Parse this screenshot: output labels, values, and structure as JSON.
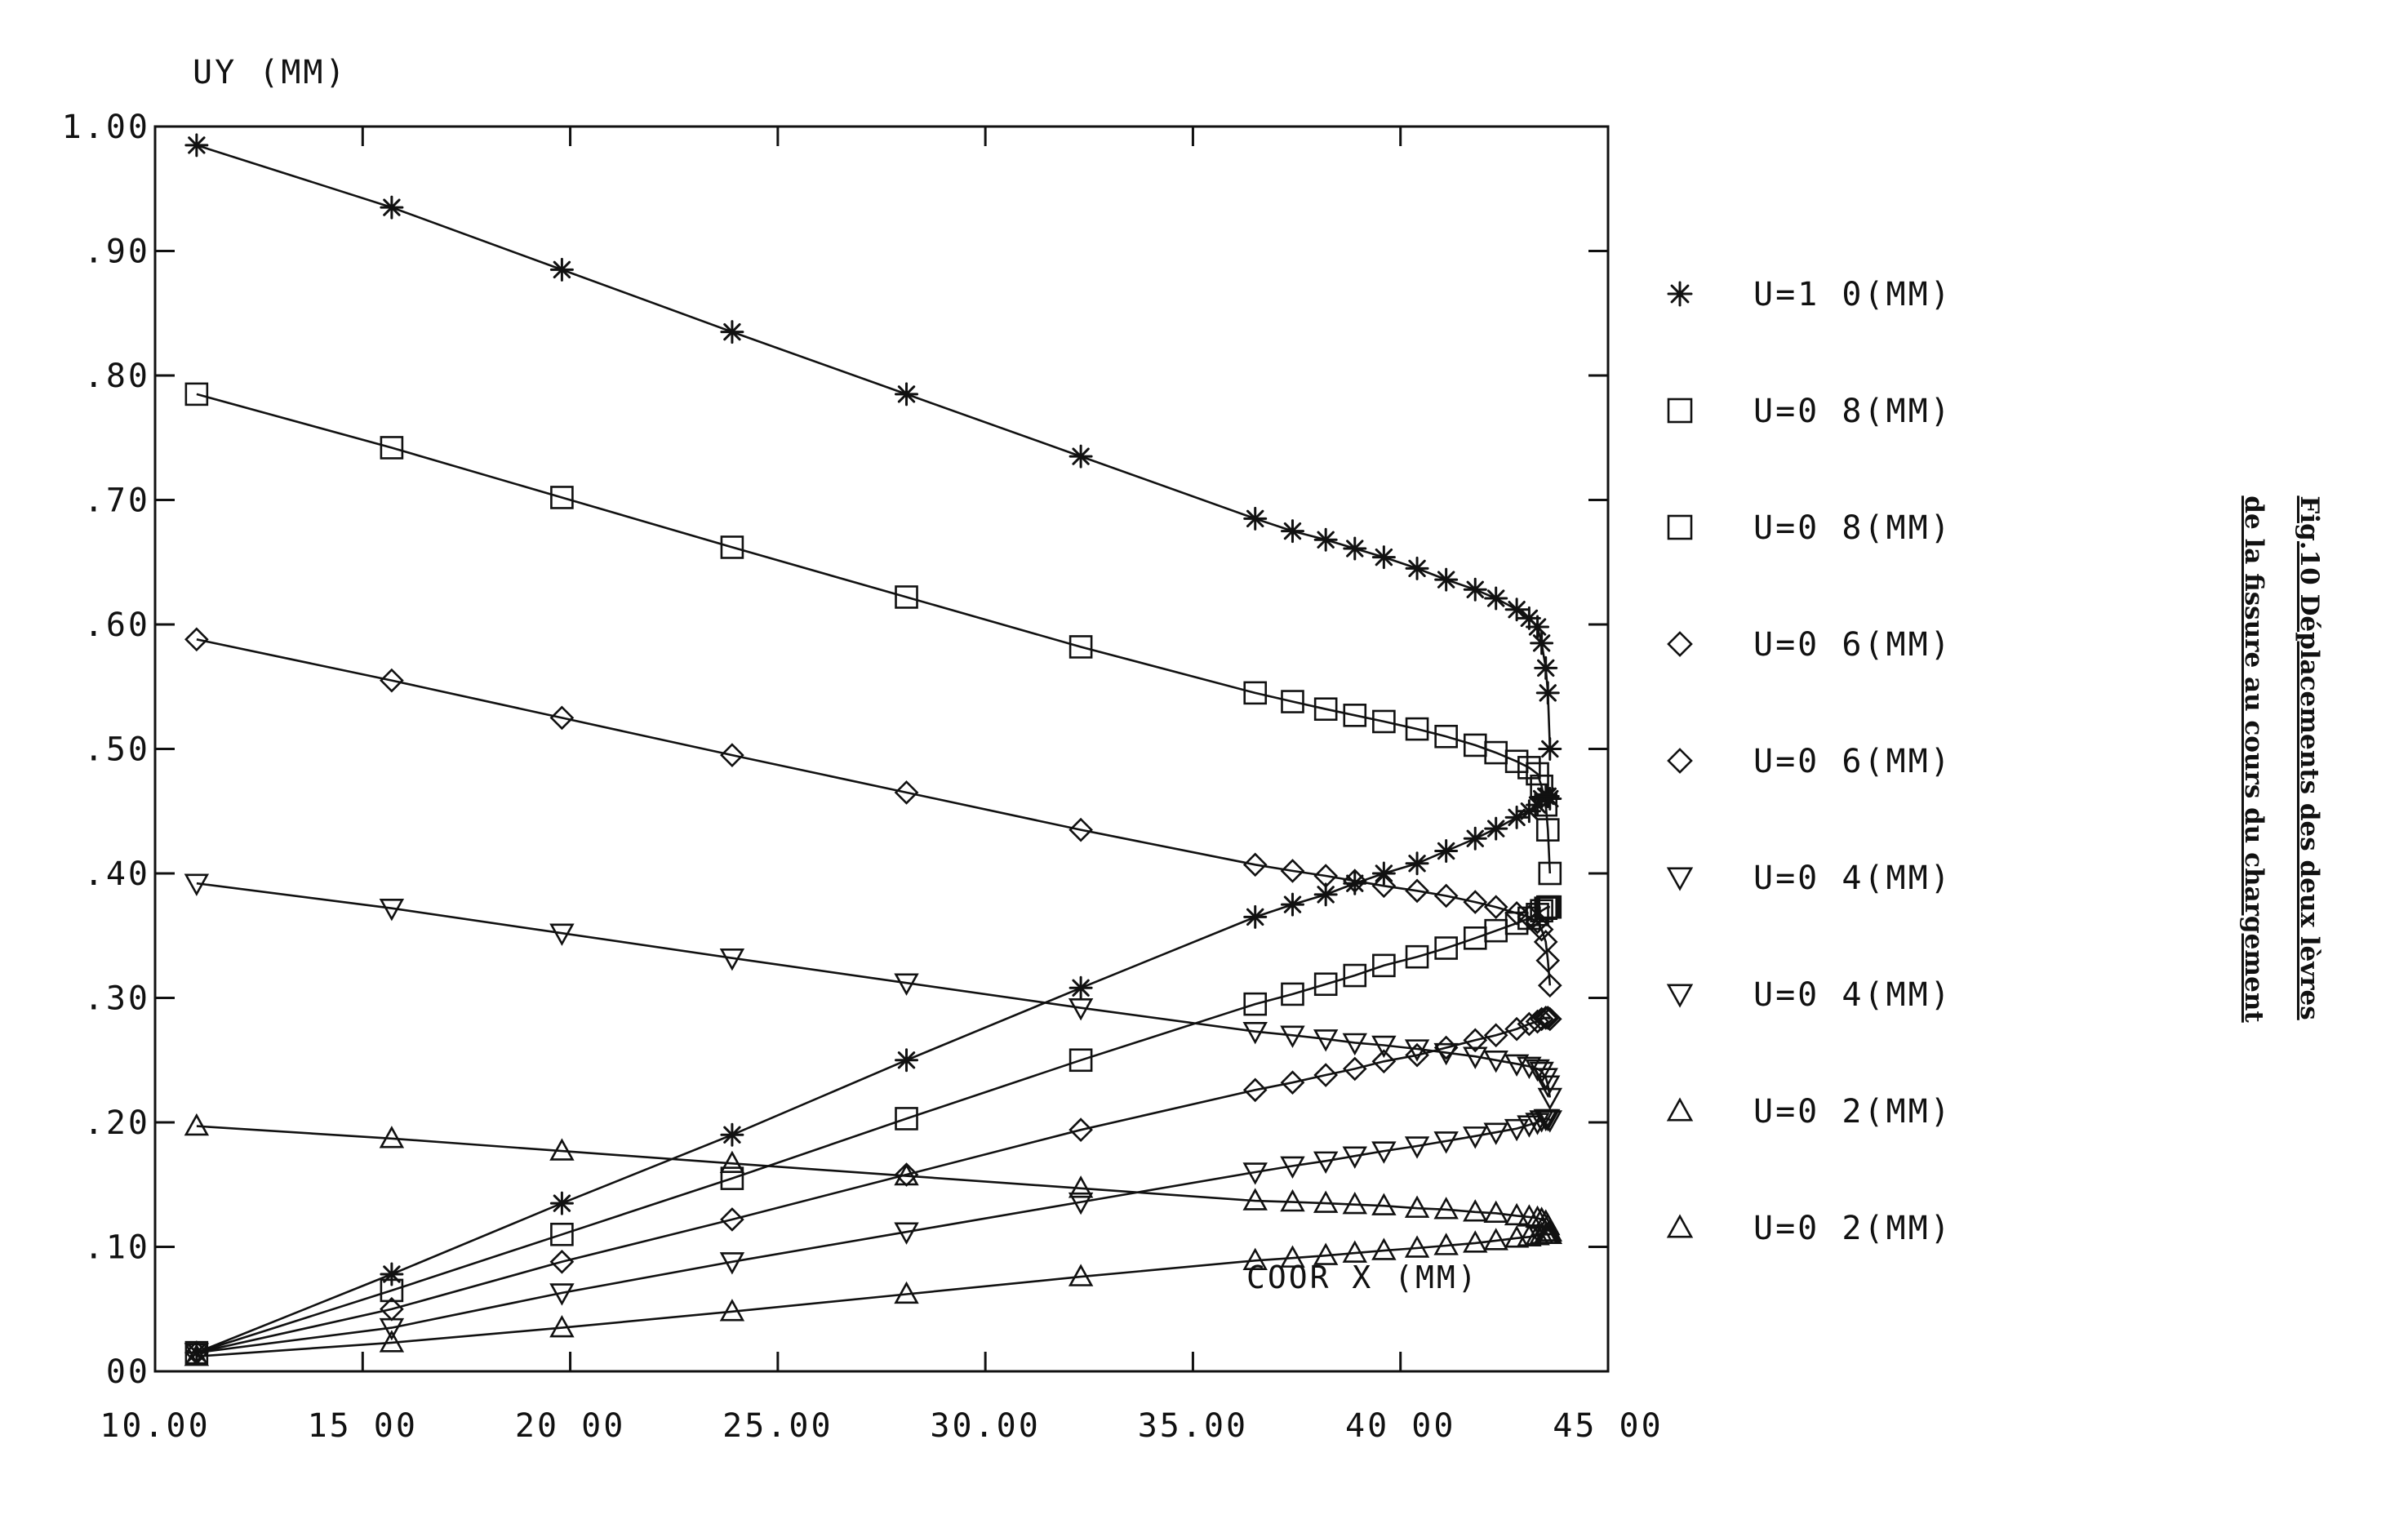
{
  "figure_caption": {
    "line1": "Fig.10 Déplacements des deux lèvres",
    "line2": "de la fissure au cours du chargement"
  },
  "chart_data": {
    "type": "line",
    "title": "",
    "xlabel": "COOR X (MM)",
    "ylabel": "UY (MM)",
    "xlim": [
      10.0,
      45.0
    ],
    "ylim": [
      0.0,
      1.0
    ],
    "x_tick_labels": [
      "10.00",
      "15 00",
      "20 00",
      "25.00",
      "30.00",
      "35.00",
      "40 00",
      "45 00"
    ],
    "y_tick_labels": [
      "00",
      ".10",
      ".20",
      ".30",
      ".40",
      ".50",
      ".60",
      ".70",
      ".80",
      ".90",
      "1.00"
    ],
    "grid": false,
    "legend_position": "right",
    "series": [
      {
        "name": "U=1 0(MM)",
        "marker": "asterisk",
        "side": "upper",
        "x": [
          11.0,
          15.7,
          19.8,
          23.9,
          28.1,
          32.3,
          36.5,
          37.4,
          38.2,
          38.9,
          39.6,
          40.4,
          41.1,
          41.8,
          42.3,
          42.8,
          43.1,
          43.3,
          43.4,
          43.5,
          43.55,
          43.6
        ],
        "y": [
          0.985,
          0.935,
          0.885,
          0.835,
          0.785,
          0.735,
          0.685,
          0.675,
          0.668,
          0.661,
          0.654,
          0.645,
          0.636,
          0.628,
          0.621,
          0.612,
          0.605,
          0.598,
          0.585,
          0.565,
          0.545,
          0.5
        ]
      },
      {
        "name": "U=1 0(MM)",
        "marker": "asterisk",
        "side": "lower",
        "x": [
          11.0,
          15.7,
          19.8,
          23.9,
          28.1,
          32.3,
          36.5,
          37.4,
          38.2,
          38.9,
          39.6,
          40.4,
          41.1,
          41.8,
          42.3,
          42.8,
          43.1,
          43.3,
          43.4,
          43.5,
          43.55,
          43.6
        ],
        "y": [
          0.015,
          0.078,
          0.135,
          0.19,
          0.25,
          0.308,
          0.365,
          0.375,
          0.383,
          0.392,
          0.4,
          0.408,
          0.418,
          0.428,
          0.436,
          0.445,
          0.45,
          0.455,
          0.46,
          0.462,
          0.462,
          0.46
        ]
      },
      {
        "name": "U=0 8(MM)",
        "marker": "square",
        "side": "upper",
        "x": [
          11.0,
          15.7,
          19.8,
          23.9,
          28.1,
          32.3,
          36.5,
          37.4,
          38.2,
          38.9,
          39.6,
          40.4,
          41.1,
          41.8,
          42.3,
          42.8,
          43.1,
          43.3,
          43.4,
          43.5,
          43.55,
          43.6
        ],
        "y": [
          0.785,
          0.742,
          0.702,
          0.662,
          0.622,
          0.582,
          0.545,
          0.538,
          0.532,
          0.527,
          0.522,
          0.516,
          0.51,
          0.503,
          0.497,
          0.49,
          0.485,
          0.48,
          0.47,
          0.455,
          0.435,
          0.4
        ]
      },
      {
        "name": "U=0.8(MM)",
        "marker": "square",
        "side": "lower",
        "x": [
          11.0,
          15.7,
          19.8,
          23.9,
          28.1,
          32.3,
          36.5,
          37.4,
          38.2,
          38.9,
          39.6,
          40.4,
          41.1,
          41.8,
          42.3,
          42.8,
          43.1,
          43.3,
          43.4,
          43.5,
          43.55,
          43.6
        ],
        "y": [
          0.015,
          0.065,
          0.11,
          0.155,
          0.203,
          0.25,
          0.295,
          0.303,
          0.311,
          0.318,
          0.326,
          0.333,
          0.34,
          0.348,
          0.354,
          0.36,
          0.364,
          0.367,
          0.37,
          0.372,
          0.373,
          0.373
        ]
      },
      {
        "name": "U=0.6(MM)",
        "marker": "diamond",
        "side": "upper",
        "x": [
          11.0,
          15.7,
          19.8,
          23.9,
          28.1,
          32.3,
          36.5,
          37.4,
          38.2,
          38.9,
          39.6,
          40.4,
          41.1,
          41.8,
          42.3,
          42.8,
          43.1,
          43.3,
          43.4,
          43.5,
          43.55,
          43.6
        ],
        "y": [
          0.588,
          0.555,
          0.525,
          0.495,
          0.465,
          0.435,
          0.407,
          0.402,
          0.398,
          0.394,
          0.39,
          0.386,
          0.382,
          0.377,
          0.373,
          0.368,
          0.365,
          0.361,
          0.355,
          0.345,
          0.33,
          0.31
        ]
      },
      {
        "name": "U=0 6(MM)",
        "marker": "diamond",
        "side": "lower",
        "x": [
          11.0,
          15.7,
          19.8,
          23.9,
          28.1,
          32.3,
          36.5,
          37.4,
          38.2,
          38.9,
          39.6,
          40.4,
          41.1,
          41.8,
          42.3,
          42.8,
          43.1,
          43.3,
          43.4,
          43.5,
          43.55,
          43.6
        ],
        "y": [
          0.015,
          0.05,
          0.088,
          0.122,
          0.158,
          0.194,
          0.226,
          0.232,
          0.238,
          0.243,
          0.249,
          0.254,
          0.26,
          0.266,
          0.27,
          0.275,
          0.279,
          0.281,
          0.283,
          0.284,
          0.284,
          0.283
        ]
      },
      {
        "name": "U=0 4(MM)",
        "marker": "triangle-down",
        "side": "upper",
        "x": [
          11.0,
          15.7,
          19.8,
          23.9,
          28.1,
          32.3,
          36.5,
          37.4,
          38.2,
          38.9,
          39.6,
          40.4,
          41.1,
          41.8,
          42.3,
          42.8,
          43.1,
          43.3,
          43.4,
          43.5,
          43.55,
          43.6
        ],
        "y": [
          0.392,
          0.372,
          0.352,
          0.332,
          0.312,
          0.292,
          0.273,
          0.27,
          0.267,
          0.264,
          0.262,
          0.259,
          0.256,
          0.253,
          0.25,
          0.247,
          0.245,
          0.243,
          0.241,
          0.236,
          0.23,
          0.22
        ]
      },
      {
        "name": "U=0 4(MM)",
        "marker": "triangle-down",
        "side": "lower",
        "x": [
          11.0,
          15.7,
          19.8,
          23.9,
          28.1,
          32.3,
          36.5,
          37.4,
          38.2,
          38.9,
          39.6,
          40.4,
          41.1,
          41.8,
          42.3,
          42.8,
          43.1,
          43.3,
          43.4,
          43.5,
          43.55,
          43.6
        ],
        "y": [
          0.015,
          0.035,
          0.063,
          0.088,
          0.112,
          0.136,
          0.16,
          0.165,
          0.169,
          0.173,
          0.177,
          0.181,
          0.185,
          0.189,
          0.192,
          0.195,
          0.198,
          0.2,
          0.202,
          0.203,
          0.203,
          0.202
        ]
      },
      {
        "name": "U=0 2(MM)",
        "marker": "triangle-up",
        "side": "upper",
        "x": [
          11.0,
          15.7,
          19.8,
          23.9,
          28.1,
          32.3,
          36.5,
          37.4,
          38.2,
          38.9,
          39.6,
          40.4,
          41.1,
          41.8,
          42.3,
          42.8,
          43.1,
          43.3,
          43.4,
          43.5,
          43.55,
          43.6
        ],
        "y": [
          0.197,
          0.187,
          0.177,
          0.167,
          0.157,
          0.147,
          0.137,
          0.136,
          0.135,
          0.134,
          0.133,
          0.131,
          0.13,
          0.128,
          0.127,
          0.125,
          0.124,
          0.123,
          0.122,
          0.12,
          0.117,
          0.112
        ]
      },
      {
        "name": "U=0 2(MM)",
        "marker": "triangle-up",
        "side": "lower",
        "x": [
          11.0,
          15.7,
          19.8,
          23.9,
          28.1,
          32.3,
          36.5,
          37.4,
          38.2,
          38.9,
          39.6,
          40.4,
          41.1,
          41.8,
          42.3,
          42.8,
          43.1,
          43.3,
          43.4,
          43.5,
          43.55,
          43.6
        ],
        "y": [
          0.012,
          0.023,
          0.035,
          0.048,
          0.062,
          0.076,
          0.089,
          0.091,
          0.093,
          0.095,
          0.097,
          0.099,
          0.101,
          0.103,
          0.105,
          0.107,
          0.108,
          0.109,
          0.11,
          0.11,
          0.11,
          0.11
        ]
      }
    ],
    "legend": [
      {
        "label": "U=1 0(MM)",
        "marker": "asterisk"
      },
      {
        "label": "U=0 8(MM)",
        "marker": "square"
      },
      {
        "label": "U=0 8(MM)",
        "marker": "square"
      },
      {
        "label": "U=0 6(MM)",
        "marker": "diamond"
      },
      {
        "label": "U=0 6(MM)",
        "marker": "diamond"
      },
      {
        "label": "U=0 4(MM)",
        "marker": "triangle-down"
      },
      {
        "label": "U=0 4(MM)",
        "marker": "triangle-down"
      },
      {
        "label": "U=0 2(MM)",
        "marker": "triangle-up"
      },
      {
        "label": "U=0 2(MM)",
        "marker": "triangle-up"
      }
    ]
  }
}
